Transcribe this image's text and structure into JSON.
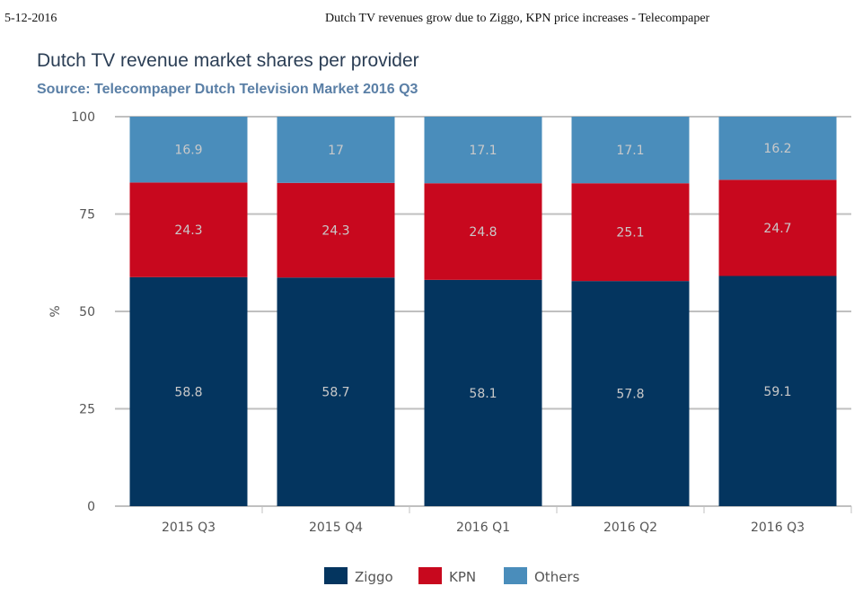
{
  "header": {
    "date": "5-12-2016",
    "doc_title": "Dutch TV revenues grow due to Ziggo, KPN price increases - Telecompaper"
  },
  "chart_data": {
    "type": "bar",
    "stacked": true,
    "title": "Dutch TV revenue market shares per provider",
    "subtitle": "Source: Telecompaper Dutch Television Market 2016 Q3",
    "xlabel": "",
    "ylabel": "%",
    "ylim": [
      0,
      100
    ],
    "yticks": [
      "0",
      "25",
      "50",
      "75",
      "100"
    ],
    "grid": true,
    "legend_position": "bottom",
    "categories": [
      "2015 Q3",
      "2015 Q4",
      "2016 Q1",
      "2016 Q2",
      "2016 Q3"
    ],
    "series": [
      {
        "name": "Ziggo",
        "color": "#04355f",
        "values": [
          58.8,
          58.7,
          58.1,
          57.8,
          59.1
        ]
      },
      {
        "name": "KPN",
        "color": "#c8081e",
        "values": [
          24.3,
          24.3,
          24.8,
          25.1,
          24.7
        ]
      },
      {
        "name": "Others",
        "color": "#4a8dbb",
        "values": [
          16.9,
          17,
          17.1,
          17.1,
          16.2
        ]
      }
    ]
  }
}
